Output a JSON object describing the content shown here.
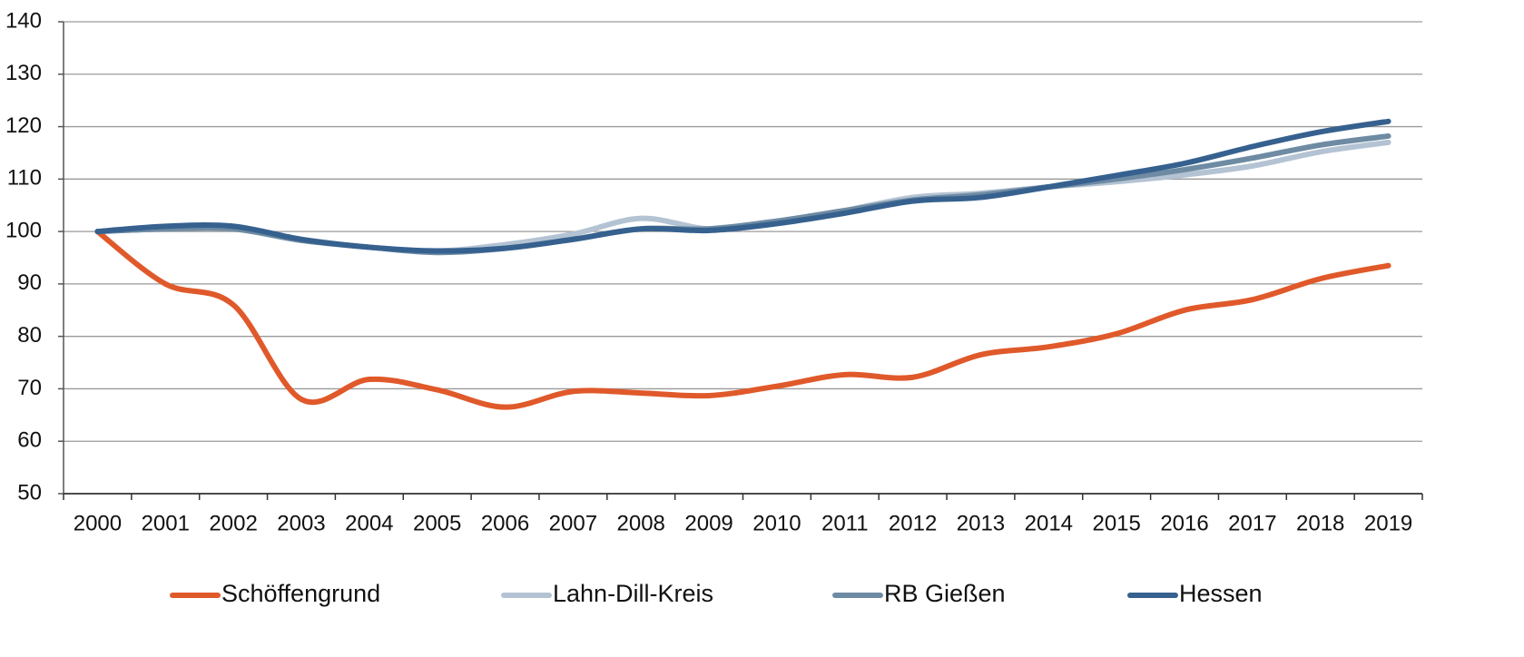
{
  "chart_data": {
    "type": "line",
    "categories": [
      "2000",
      "2001",
      "2002",
      "2003",
      "2004",
      "2005",
      "2006",
      "2007",
      "2008",
      "2009",
      "2010",
      "2011",
      "2012",
      "2013",
      "2014",
      "2015",
      "2016",
      "2017",
      "2018",
      "2019"
    ],
    "series": [
      {
        "name": "Schöffengrund",
        "color": "#e0592a",
        "values": [
          100,
          90,
          86,
          68,
          71.8,
          69.8,
          66.5,
          69.5,
          69.2,
          68.7,
          70.5,
          72.7,
          72.2,
          76.5,
          78,
          80.5,
          85,
          87,
          91,
          93.5
        ]
      },
      {
        "name": "Lahn-Dill-Kreis",
        "color": "#b4c3d3",
        "values": [
          100,
          100.5,
          100.5,
          98.5,
          97,
          96.3,
          97.5,
          99.5,
          102.5,
          100.5,
          101.5,
          104,
          106.5,
          107.3,
          108.5,
          109.5,
          110.8,
          112.5,
          115.2,
          117
        ]
      },
      {
        "name": "RB Gießen",
        "color": "#6e8ba3",
        "values": [
          100,
          100.5,
          100.5,
          98.3,
          97,
          96,
          96.8,
          98.5,
          100.5,
          100.5,
          102,
          104,
          106,
          107,
          108.5,
          110,
          111.8,
          114,
          116.5,
          118.2
        ]
      },
      {
        "name": "Hessen",
        "color": "#36618f",
        "values": [
          100,
          101,
          101,
          98.5,
          97,
          96.3,
          96.8,
          98.5,
          100.5,
          100.2,
          101.5,
          103.5,
          105.8,
          106.5,
          108.5,
          110.7,
          113,
          116.2,
          119,
          121
        ]
      }
    ],
    "ylim": [
      50,
      140
    ],
    "yticks": [
      50,
      60,
      70,
      80,
      90,
      100,
      110,
      120,
      130,
      140
    ],
    "grid": true,
    "legend": "bottom"
  }
}
